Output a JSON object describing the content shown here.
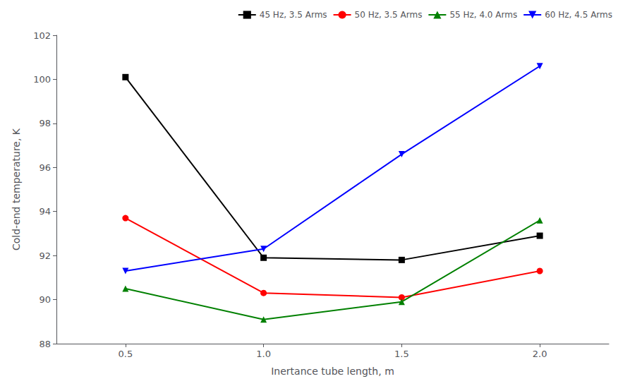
{
  "chart_data": {
    "type": "line",
    "xlabel": "Inertance tube length, m",
    "ylabel": "Cold-end temperature, K",
    "x": [
      0.5,
      1.0,
      1.5,
      2.0
    ],
    "series": [
      {
        "name": "45 Hz, 3.5 Arms",
        "color": "black",
        "marker": "square",
        "line_style": "solid",
        "values": [
          100.1,
          91.9,
          91.8,
          92.9
        ]
      },
      {
        "name": "50 Hz, 3.5 Arms",
        "color": "red",
        "marker": "circle",
        "line_style": "solid",
        "values": [
          93.7,
          90.3,
          90.1,
          91.3
        ]
      },
      {
        "name": "55 Hz, 4.0 Arms",
        "color": "green",
        "marker": "triangle-up",
        "line_style": "solid",
        "values": [
          90.5,
          89.1,
          89.9,
          93.6
        ]
      },
      {
        "name": "60 Hz, 4.5 Arms",
        "color": "blue",
        "marker": "triangle-down",
        "line_style": "solid",
        "values": [
          91.3,
          92.3,
          96.6,
          100.6
        ]
      }
    ],
    "xlim": [
      0.25,
      2.25
    ],
    "xticks": [
      0.5,
      {
        "value": 1.0,
        "label": "1.0"
      },
      1.5,
      {
        "value": 2.0,
        "label": "2.0"
      }
    ],
    "ylim": [
      88,
      102
    ],
    "yticks": [
      88,
      90,
      92,
      94,
      96,
      98,
      100,
      102
    ],
    "grid": false,
    "legend": "upper right"
  }
}
